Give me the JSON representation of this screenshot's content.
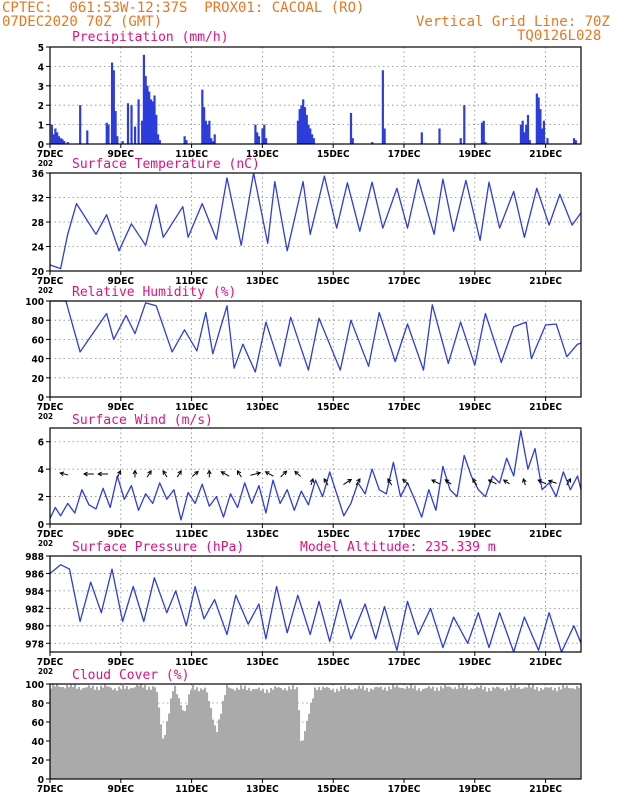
{
  "header": {
    "left_line1": "CPTEC:  061:53W-12:37S  PROX01: CACOAL (RO)",
    "left_line2": "07DEC2020 70Z (GMT)",
    "right_line1": "Vertical Grid Line: 70Z",
    "right_line2": "TQ0126L028"
  },
  "x_tick_labels": [
    "7DEC",
    "9DEC",
    "11DEC",
    "13DEC",
    "15DEC",
    "17DEC",
    "19DEC",
    "21DEC"
  ],
  "year_stub": "202",
  "colors": {
    "header": "#e87722",
    "title": "#e0117f",
    "series": "#2d3ddb",
    "cloud": "#aaaaaa"
  },
  "chart_data": [
    {
      "id": "precip",
      "type": "bar",
      "title": "Precipitation (mm/h)",
      "ylim": [
        0,
        5
      ],
      "yticks": [
        0,
        1,
        2,
        3,
        4,
        5
      ],
      "x_unit": "days since 7DEC 00Z",
      "xlim": [
        0,
        15
      ],
      "bars": [
        [
          0.05,
          1.0
        ],
        [
          0.1,
          0.5
        ],
        [
          0.15,
          0.8
        ],
        [
          0.2,
          0.6
        ],
        [
          0.25,
          0.4
        ],
        [
          0.3,
          0.3
        ],
        [
          0.35,
          0.25
        ],
        [
          0.4,
          0.15
        ],
        [
          0.5,
          0.1
        ],
        [
          0.85,
          2.0
        ],
        [
          1.05,
          0.7
        ],
        [
          1.6,
          1.1
        ],
        [
          1.65,
          1.0
        ],
        [
          1.75,
          4.2
        ],
        [
          1.8,
          3.8
        ],
        [
          1.85,
          1.7
        ],
        [
          1.9,
          0.4
        ],
        [
          2.05,
          0.15
        ],
        [
          2.2,
          2.1
        ],
        [
          2.3,
          2.0
        ],
        [
          2.4,
          0.9
        ],
        [
          2.5,
          2.3
        ],
        [
          2.6,
          1.2
        ],
        [
          2.65,
          4.6
        ],
        [
          2.7,
          3.5
        ],
        [
          2.75,
          3.0
        ],
        [
          2.8,
          2.7
        ],
        [
          2.85,
          2.3
        ],
        [
          2.9,
          2.2
        ],
        [
          2.95,
          2.5
        ],
        [
          3.0,
          1.5
        ],
        [
          3.05,
          0.5
        ],
        [
          3.1,
          0.2
        ],
        [
          3.8,
          0.4
        ],
        [
          3.85,
          0.2
        ],
        [
          4.3,
          2.8
        ],
        [
          4.35,
          1.9
        ],
        [
          4.4,
          1.2
        ],
        [
          4.45,
          1.0
        ],
        [
          4.5,
          1.2
        ],
        [
          4.55,
          0.3
        ],
        [
          4.6,
          0.15
        ],
        [
          4.65,
          0.5
        ],
        [
          5.8,
          1.0
        ],
        [
          5.85,
          0.6
        ],
        [
          5.9,
          0.4
        ],
        [
          6.0,
          0.8
        ],
        [
          6.05,
          1.0
        ],
        [
          6.1,
          0.3
        ],
        [
          7.0,
          1.2
        ],
        [
          7.05,
          1.8
        ],
        [
          7.1,
          2.0
        ],
        [
          7.15,
          2.3
        ],
        [
          7.2,
          1.9
        ],
        [
          7.25,
          1.5
        ],
        [
          7.3,
          1.0
        ],
        [
          7.35,
          0.8
        ],
        [
          7.4,
          0.5
        ],
        [
          7.45,
          0.3
        ],
        [
          8.5,
          1.6
        ],
        [
          8.55,
          0.3
        ],
        [
          9.1,
          0.1
        ],
        [
          9.4,
          3.8
        ],
        [
          9.45,
          0.8
        ],
        [
          10.5,
          0.6
        ],
        [
          11.0,
          0.8
        ],
        [
          11.6,
          0.3
        ],
        [
          11.7,
          2.0
        ],
        [
          12.2,
          1.1
        ],
        [
          12.25,
          1.2
        ],
        [
          12.3,
          0.1
        ],
        [
          13.3,
          1.0
        ],
        [
          13.35,
          1.2
        ],
        [
          13.4,
          0.6
        ],
        [
          13.45,
          1.0
        ],
        [
          13.5,
          1.5
        ],
        [
          13.55,
          0.2
        ],
        [
          13.75,
          2.6
        ],
        [
          13.8,
          2.4
        ],
        [
          13.85,
          1.8
        ],
        [
          13.9,
          0.8
        ],
        [
          13.95,
          1.2
        ],
        [
          14.05,
          0.3
        ],
        [
          14.8,
          0.3
        ],
        [
          14.85,
          0.2
        ]
      ]
    },
    {
      "id": "temp",
      "type": "line",
      "title": "Surface Temperature (nC)",
      "ylim": [
        20,
        36
      ],
      "yticks": [
        20,
        24,
        28,
        32,
        36
      ],
      "x_unit": "days since 7DEC 00Z",
      "xlim": [
        0,
        15
      ],
      "x": [
        0,
        0.3,
        0.5,
        0.75,
        1.3,
        1.6,
        1.95,
        2.3,
        2.7,
        3.0,
        3.2,
        3.75,
        3.9,
        4.3,
        4.7,
        5.0,
        5.4,
        5.75,
        6.15,
        6.35,
        6.7,
        7.15,
        7.35,
        7.75,
        8.1,
        8.4,
        8.75,
        9.1,
        9.4,
        9.8,
        10.1,
        10.4,
        10.85,
        11.1,
        11.4,
        11.75,
        12.15,
        12.4,
        12.7,
        13.1,
        13.4,
        13.75,
        14.1,
        14.4,
        14.75,
        15.0
      ],
      "y": [
        21.0,
        20.4,
        26.0,
        31.0,
        26.0,
        29.2,
        23.3,
        27.7,
        24.2,
        30.8,
        25.5,
        30.5,
        25.5,
        31.0,
        25.2,
        35.2,
        24.2,
        36.0,
        24.5,
        34.6,
        23.3,
        34.6,
        26.0,
        35.5,
        27.0,
        34.4,
        26.5,
        34.5,
        27.0,
        33.5,
        27.0,
        35.0,
        26.0,
        35.0,
        26.5,
        34.8,
        25.0,
        34.5,
        27.0,
        33.0,
        25.5,
        33.5,
        27.5,
        32.5,
        27.5,
        29.5
      ]
    },
    {
      "id": "rh",
      "type": "line",
      "title": "Relative Humidity (%)",
      "ylim": [
        0,
        100
      ],
      "yticks": [
        0,
        20,
        40,
        60,
        80,
        100
      ],
      "x_unit": "days since 7DEC 00Z",
      "xlim": [
        0,
        15
      ],
      "x": [
        0,
        0.45,
        0.85,
        1.6,
        1.8,
        2.15,
        2.4,
        2.7,
        3.0,
        3.45,
        3.8,
        4.15,
        4.4,
        4.6,
        5.0,
        5.2,
        5.45,
        5.8,
        6.1,
        6.5,
        6.8,
        7.3,
        7.6,
        8.2,
        8.5,
        9.0,
        9.3,
        9.75,
        10.1,
        10.55,
        10.8,
        11.25,
        11.6,
        12.0,
        12.3,
        12.75,
        13.1,
        13.45,
        13.6,
        14.0,
        14.3,
        14.6,
        14.9,
        15.0
      ],
      "y": [
        100,
        100,
        47,
        87,
        60,
        85,
        66,
        98,
        95,
        47,
        70,
        48,
        88,
        45,
        95,
        30,
        55,
        26,
        78,
        32,
        83,
        28,
        82,
        28,
        80,
        32,
        88,
        37,
        76,
        28,
        96,
        35,
        78,
        33,
        87,
        36,
        73,
        78,
        40,
        75,
        76,
        42,
        55,
        56
      ]
    },
    {
      "id": "wind",
      "type": "line",
      "title": "Surface Wind (m/s)",
      "ylim": [
        0,
        7
      ],
      "yticks": [
        0,
        2,
        4,
        6
      ],
      "x_unit": "days since 7DEC 00Z",
      "xlim": [
        0,
        15
      ],
      "x": [
        0,
        0.15,
        0.3,
        0.5,
        0.7,
        0.9,
        1.1,
        1.3,
        1.5,
        1.7,
        1.9,
        2.1,
        2.3,
        2.5,
        2.7,
        2.9,
        3.1,
        3.3,
        3.5,
        3.7,
        3.9,
        4.1,
        4.3,
        4.5,
        4.7,
        4.9,
        5.1,
        5.3,
        5.5,
        5.7,
        5.9,
        6.1,
        6.3,
        6.5,
        6.7,
        6.9,
        7.1,
        7.3,
        7.5,
        7.7,
        7.9,
        8.1,
        8.3,
        8.5,
        8.7,
        8.9,
        9.1,
        9.3,
        9.5,
        9.7,
        9.9,
        10.1,
        10.3,
        10.5,
        10.7,
        10.9,
        11.1,
        11.3,
        11.5,
        11.7,
        11.9,
        12.1,
        12.3,
        12.5,
        12.7,
        12.9,
        13.1,
        13.3,
        13.5,
        13.7,
        13.9,
        14.1,
        14.3,
        14.5,
        14.7,
        14.9,
        15.0
      ],
      "y": [
        0.4,
        1.2,
        0.6,
        1.5,
        0.8,
        2.5,
        1.4,
        1.1,
        2.6,
        1.2,
        3.5,
        1.8,
        2.8,
        1.0,
        2.2,
        1.5,
        3.0,
        1.8,
        2.5,
        0.3,
        2.3,
        1.5,
        2.9,
        1.3,
        2.0,
        0.5,
        2.2,
        1.2,
        3.0,
        1.5,
        2.8,
        0.8,
        3.2,
        1.5,
        2.5,
        1.0,
        2.4,
        1.4,
        3.2,
        2.0,
        3.8,
        2.2,
        0.6,
        1.5,
        3.0,
        2.2,
        4.0,
        2.5,
        2.2,
        4.5,
        2.0,
        3.0,
        1.8,
        0.5,
        2.5,
        1.0,
        4.2,
        2.5,
        2.0,
        5.0,
        3.5,
        2.5,
        2.0,
        3.5,
        3.0,
        4.8,
        3.5,
        6.8,
        4.0,
        5.5,
        2.5,
        3.0,
        2.0,
        3.8,
        2.5,
        3.5,
        2.5
      ],
      "arrows": [
        [
          0.4,
          -0.4,
          0.15
        ],
        [
          1.1,
          -0.5,
          0.0
        ],
        [
          1.5,
          -0.5,
          0.0
        ],
        [
          1.95,
          0.15,
          0.5
        ],
        [
          2.4,
          0.0,
          0.55
        ],
        [
          2.8,
          0.2,
          0.5
        ],
        [
          3.25,
          -0.2,
          0.5
        ],
        [
          3.65,
          0.2,
          0.5
        ],
        [
          4.1,
          0.3,
          0.4
        ],
        [
          4.5,
          0.0,
          0.55
        ],
        [
          4.95,
          -0.4,
          0.35
        ],
        [
          5.35,
          -0.2,
          0.5
        ],
        [
          5.8,
          0.5,
          0.2
        ],
        [
          6.2,
          -0.4,
          0.35
        ],
        [
          6.6,
          0.3,
          0.45
        ],
        [
          7.0,
          -0.3,
          0.4
        ],
        [
          7.4,
          0.1,
          0.5
        ],
        [
          7.8,
          -0.2,
          0.5
        ],
        [
          8.4,
          0.4,
          0.4
        ],
        [
          8.7,
          0.2,
          0.5
        ],
        [
          9.6,
          -0.2,
          0.5
        ],
        [
          10.05,
          -0.3,
          0.4
        ],
        [
          10.9,
          -0.4,
          0.3
        ],
        [
          11.25,
          -0.3,
          0.35
        ],
        [
          12.0,
          -0.2,
          0.5
        ],
        [
          12.5,
          -0.4,
          0.3
        ],
        [
          12.9,
          -0.3,
          0.3
        ],
        [
          13.4,
          -0.1,
          0.5
        ],
        [
          13.9,
          -0.4,
          0.3
        ],
        [
          14.2,
          -0.4,
          0.2
        ],
        [
          14.65,
          0.2,
          0.5
        ]
      ]
    },
    {
      "id": "pres",
      "type": "line",
      "title": "Surface Pressure (hPa)",
      "annotation": "Model Altitude: 235.339 m",
      "ylim": [
        977,
        988
      ],
      "yticks": [
        978,
        980,
        982,
        984,
        986,
        988
      ],
      "x_unit": "days since 7DEC 00Z",
      "xlim": [
        0,
        15
      ],
      "x": [
        0,
        0.3,
        0.55,
        0.85,
        1.15,
        1.45,
        1.75,
        2.05,
        2.35,
        2.65,
        2.95,
        3.3,
        3.55,
        3.85,
        4.1,
        4.35,
        4.65,
        5.0,
        5.25,
        5.6,
        5.9,
        6.1,
        6.4,
        6.7,
        7.0,
        7.35,
        7.6,
        7.9,
        8.2,
        8.5,
        8.9,
        9.2,
        9.45,
        9.8,
        10.1,
        10.4,
        10.75,
        11.1,
        11.4,
        11.8,
        12.1,
        12.4,
        12.7,
        13.1,
        13.4,
        13.8,
        14.1,
        14.45,
        14.8,
        15.0
      ],
      "y": [
        986,
        987,
        986.5,
        980.5,
        985,
        981.5,
        986.5,
        980.5,
        984.5,
        980.5,
        985.5,
        981.5,
        984,
        980,
        984.5,
        980.8,
        983,
        979,
        983.5,
        980.2,
        982.5,
        978.5,
        984.5,
        979.2,
        983.5,
        979,
        982.8,
        978.2,
        983,
        978.5,
        982.5,
        978.5,
        982.2,
        977.2,
        982.8,
        979,
        982,
        977.5,
        981,
        978,
        981.5,
        977.5,
        981.5,
        977,
        981,
        977.2,
        981.5,
        976.8,
        980,
        978
      ]
    },
    {
      "id": "cloud",
      "type": "area",
      "title": "Cloud Cover (%)",
      "ylim": [
        0,
        100
      ],
      "yticks": [
        0,
        20,
        40,
        60,
        80,
        100
      ],
      "x_unit": "days since 7DEC 00Z",
      "xlim": [
        0,
        15
      ],
      "x": [
        0,
        0.5,
        1.0,
        1.5,
        2.0,
        2.5,
        3.0,
        3.2,
        3.5,
        3.8,
        4.0,
        4.4,
        4.7,
        5.0,
        5.3,
        5.6,
        6.0,
        6.5,
        7.0,
        7.1,
        7.5,
        8.0,
        8.5,
        9.0,
        9.5,
        10.0,
        10.5,
        11.0,
        11.5,
        12.0,
        12.5,
        13.0,
        13.5,
        14.0,
        14.5,
        15.0
      ],
      "y": [
        97,
        98,
        96,
        97,
        95,
        98,
        96,
        40,
        98,
        70,
        96,
        95,
        50,
        97,
        95,
        96,
        93,
        96,
        95,
        35,
        97,
        94,
        96,
        95,
        96,
        97,
        95,
        96,
        97,
        96,
        95,
        96,
        97,
        95,
        96,
        97
      ]
    }
  ]
}
